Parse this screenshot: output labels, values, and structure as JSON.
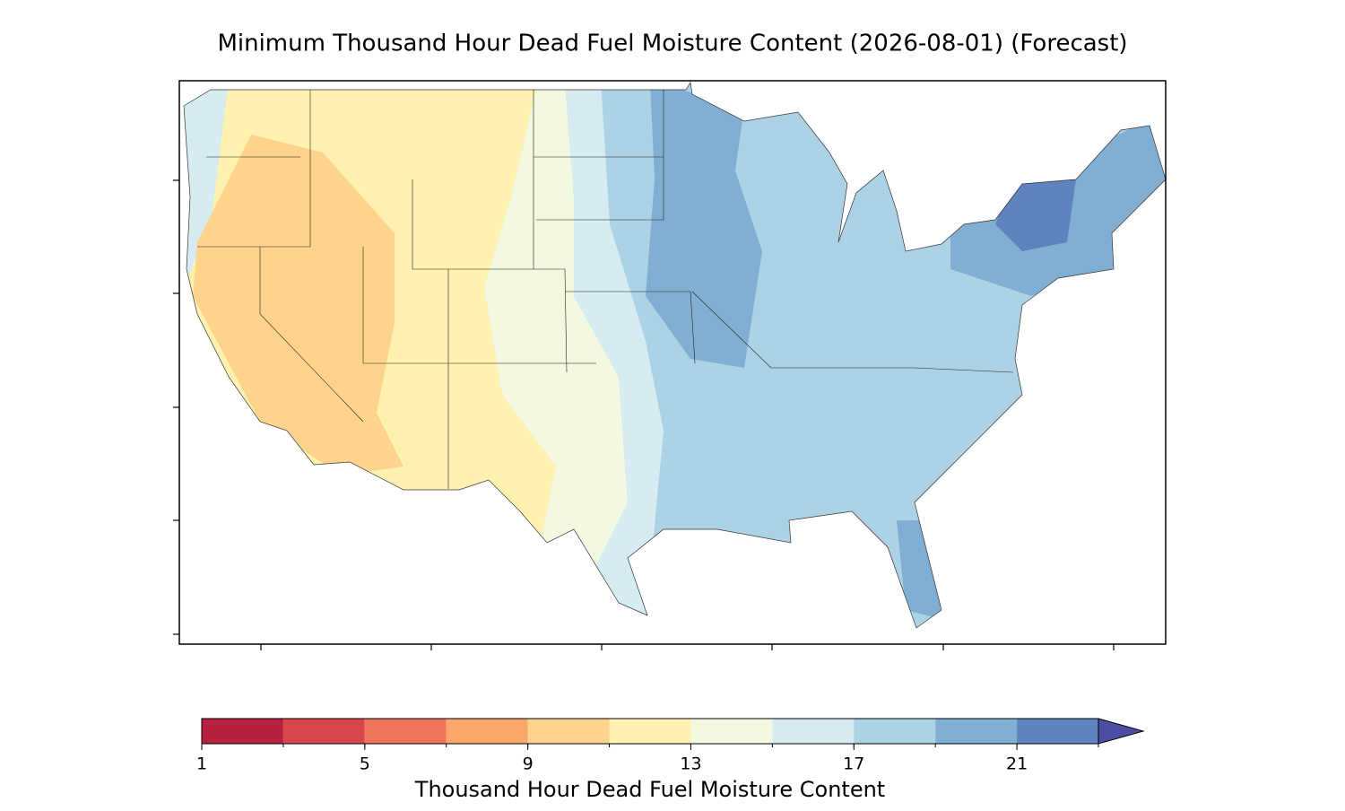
{
  "title": "Minimum Thousand Hour Dead Fuel Moisture Content (2026-08-01) (Forecast)",
  "colorbar": {
    "label": "Thousand Hour Dead Fuel Moisture Content",
    "levels": [
      1,
      3,
      5,
      7,
      9,
      11,
      13,
      15,
      17,
      19,
      21,
      23
    ],
    "colors": [
      "#b5213f",
      "#d6464b",
      "#ee7459",
      "#f9a76b",
      "#fed38b",
      "#fff2b0",
      "#f3f9e0",
      "#d6ebf2",
      "#acd2e5",
      "#81aed3",
      "#5e83bf"
    ],
    "extend_color": "#4b4da0",
    "ticks": [
      1,
      5,
      9,
      13,
      17,
      21
    ]
  }
}
